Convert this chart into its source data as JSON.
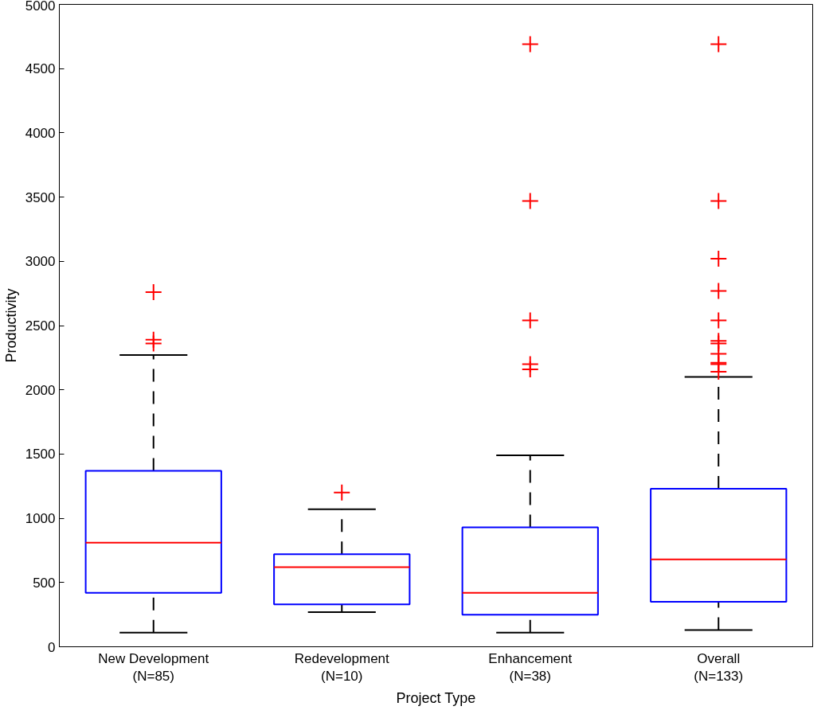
{
  "chart_data": {
    "type": "box",
    "xlabel": "Project Type",
    "ylabel": "Productivity",
    "categories": [
      "New Development\n(N=85)",
      "Redevelopment\n(N=10)",
      "Enhancement\n(N=38)",
      "Overall\n(N=133)"
    ],
    "boxes": [
      {
        "low": 110,
        "q1": 420,
        "median": 810,
        "q3": 1370,
        "high": 2270,
        "outliers": [
          2760,
          2390,
          2360
        ]
      },
      {
        "low": 270,
        "q1": 330,
        "median": 620,
        "q3": 720,
        "high": 1070,
        "outliers": [
          1200
        ]
      },
      {
        "low": 110,
        "q1": 250,
        "median": 420,
        "q3": 930,
        "high": 1490,
        "outliers": [
          4690,
          3470,
          2540,
          2200,
          2160
        ]
      },
      {
        "low": 130,
        "q1": 350,
        "median": 680,
        "q3": 1230,
        "high": 2100,
        "outliers": [
          4690,
          3470,
          3020,
          2770,
          2540,
          2380,
          2360,
          2280,
          2210,
          2200,
          2140
        ]
      }
    ],
    "color": "#0000ff",
    "marker": "cross",
    "ylim": [
      0,
      5000
    ],
    "yticks": [
      0,
      500,
      1000,
      1500,
      2000,
      2500,
      3000,
      3500,
      4000,
      4500,
      5000
    ],
    "grid": false
  }
}
